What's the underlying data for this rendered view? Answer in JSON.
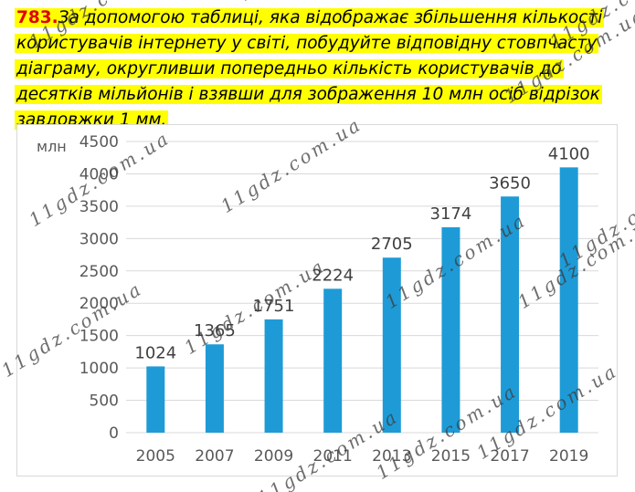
{
  "task": {
    "number": "783.",
    "text": "За допомогою таблиці, яка відображає збільшення кількості користувачів інтернету у світі, побудуйте відповідну стовпчасту діаграму, округливши попередньо кількість користувачів до десятків мільйонів і взявши для зображення 10 млн осіб відрізок завдовжки 1 мм."
  },
  "watermark_text": "11gdz.com.ua",
  "colors": {
    "bar": "#1e9bd7",
    "grid": "#d9d9d9",
    "axis_text": "#595959",
    "label_text": "#404040",
    "highlight": "#ffff00",
    "task_number": "#e00000"
  },
  "chart_data": {
    "type": "bar",
    "title": "",
    "ylabel": "млн",
    "xlabel": "",
    "categories": [
      "2005",
      "2007",
      "2009",
      "2011",
      "2013",
      "2015",
      "2017",
      "2019"
    ],
    "values": [
      1024,
      1365,
      1751,
      2224,
      2705,
      3174,
      3650,
      4100
    ],
    "data_labels": [
      "1024",
      "1365",
      "1751",
      "2224",
      "2705",
      "3174",
      "3650",
      "4100"
    ],
    "ylim": [
      0,
      4500
    ],
    "yticks": [
      "0",
      "500",
      "1000",
      "1500",
      "2000",
      "2500",
      "3000",
      "3500",
      "4000",
      "4500"
    ],
    "grid": true,
    "legend": "none"
  }
}
